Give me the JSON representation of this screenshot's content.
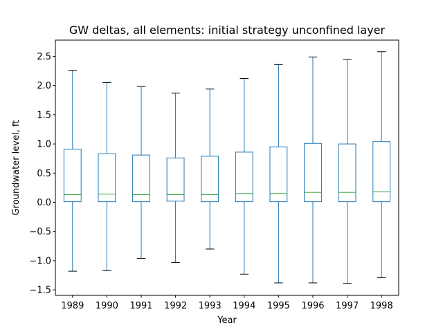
{
  "chart_data": {
    "type": "box",
    "title": "GW deltas, all elements: initial strategy unconfined layer",
    "xlabel": "Year",
    "ylabel": "Groundwater level, ft",
    "ylim": [
      -1.6,
      2.8
    ],
    "yticks": [
      -1.5,
      -1.0,
      -0.5,
      0.0,
      0.5,
      1.0,
      1.5,
      2.0,
      2.5
    ],
    "ytick_labels": [
      "−1.5",
      "−1.0",
      "−0.5",
      "0.0",
      "0.5",
      "1.0",
      "1.5",
      "2.0",
      "2.5"
    ],
    "grid": false,
    "colors": {
      "box": "#1f77b4",
      "median": "#2ca02c",
      "cap": "#000000"
    },
    "categories": [
      "1989",
      "1990",
      "1991",
      "1992",
      "1993",
      "1994",
      "1995",
      "1996",
      "1997",
      "1998"
    ],
    "boxes": [
      {
        "label": "1989",
        "whislo": -1.18,
        "q1": 0.01,
        "med": 0.13,
        "q3": 0.91,
        "whishi": 2.26
      },
      {
        "label": "1990",
        "whislo": -1.17,
        "q1": 0.01,
        "med": 0.14,
        "q3": 0.83,
        "whishi": 2.05
      },
      {
        "label": "1991",
        "whislo": -0.96,
        "q1": 0.01,
        "med": 0.13,
        "q3": 0.81,
        "whishi": 1.98
      },
      {
        "label": "1992",
        "whislo": -1.03,
        "q1": 0.02,
        "med": 0.13,
        "q3": 0.76,
        "whishi": 1.87
      },
      {
        "label": "1993",
        "whislo": -0.8,
        "q1": 0.01,
        "med": 0.13,
        "q3": 0.79,
        "whishi": 1.94
      },
      {
        "label": "1994",
        "whislo": -1.23,
        "q1": 0.01,
        "med": 0.15,
        "q3": 0.86,
        "whishi": 2.12
      },
      {
        "label": "1995",
        "whislo": -1.38,
        "q1": 0.01,
        "med": 0.15,
        "q3": 0.95,
        "whishi": 2.36
      },
      {
        "label": "1996",
        "whislo": -1.38,
        "q1": 0.01,
        "med": 0.17,
        "q3": 1.01,
        "whishi": 2.49
      },
      {
        "label": "1997",
        "whislo": -1.39,
        "q1": 0.01,
        "med": 0.17,
        "q3": 1.0,
        "whishi": 2.45
      },
      {
        "label": "1998",
        "whislo": -1.29,
        "q1": 0.01,
        "med": 0.18,
        "q3": 1.04,
        "whishi": 2.58
      }
    ]
  }
}
